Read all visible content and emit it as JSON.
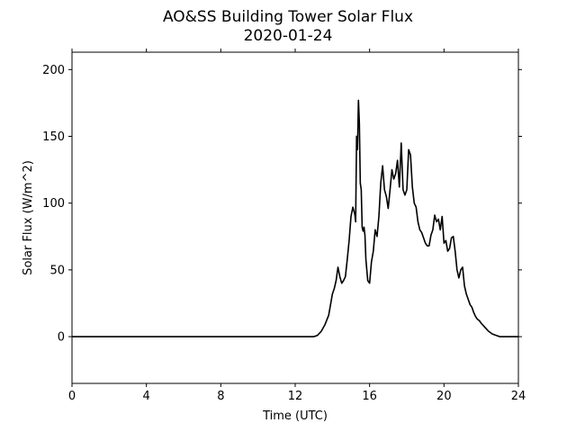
{
  "chart_data": {
    "type": "line",
    "title": "AO&SS Building Tower Solar Flux",
    "subtitle": "2020-01-24",
    "xlabel": "Time (UTC)",
    "ylabel": "Solar Flux (W/m^2)",
    "xlim": [
      0,
      24
    ],
    "ylim": [
      -35,
      213
    ],
    "xticks": [
      0,
      4,
      8,
      12,
      16,
      20,
      24
    ],
    "yticks": [
      0,
      50,
      100,
      150,
      200
    ],
    "grid": false,
    "legend": "none",
    "series": [
      {
        "color": "#000000",
        "x": [
          0,
          1,
          2,
          3,
          4,
          5,
          6,
          7,
          8,
          9,
          10,
          11,
          12,
          12.5,
          13,
          13.2,
          13.4,
          13.6,
          13.8,
          13.9,
          14,
          14.1,
          14.2,
          14.3,
          14.4,
          14.5,
          14.6,
          14.7,
          14.8,
          14.9,
          15,
          15.1,
          15.2,
          15.25,
          15.3,
          15.35,
          15.4,
          15.45,
          15.5,
          15.55,
          15.6,
          15.65,
          15.7,
          15.75,
          15.8,
          15.9,
          16,
          16.1,
          16.15,
          16.2,
          16.3,
          16.4,
          16.5,
          16.6,
          16.7,
          16.8,
          16.9,
          17,
          17.1,
          17.2,
          17.3,
          17.4,
          17.5,
          17.6,
          17.7,
          17.8,
          17.9,
          18,
          18.1,
          18.2,
          18.3,
          18.4,
          18.5,
          18.6,
          18.7,
          18.8,
          18.9,
          19,
          19.1,
          19.2,
          19.3,
          19.4,
          19.5,
          19.6,
          19.7,
          19.8,
          19.9,
          20,
          20.1,
          20.2,
          20.3,
          20.4,
          20.5,
          20.6,
          20.7,
          20.8,
          20.9,
          21,
          21.1,
          21.2,
          21.3,
          21.4,
          21.5,
          21.6,
          21.7,
          21.8,
          21.9,
          22,
          22.2,
          22.4,
          22.6,
          22.8,
          23,
          23.2,
          23.5,
          24
        ],
        "y": [
          0,
          0,
          0,
          0,
          0,
          0,
          0,
          0,
          0,
          0,
          0,
          0,
          0,
          0,
          0,
          1,
          4,
          9,
          16,
          24,
          32,
          36,
          42,
          52,
          45,
          40,
          42,
          45,
          58,
          72,
          90,
          97,
          92,
          86,
          150,
          140,
          177,
          160,
          115,
          110,
          82,
          79,
          82,
          76,
          58,
          42,
          40,
          56,
          60,
          64,
          80,
          75,
          90,
          115,
          128,
          110,
          105,
          96,
          110,
          125,
          118,
          122,
          132,
          112,
          145,
          110,
          106,
          110,
          140,
          136,
          112,
          100,
          97,
          86,
          80,
          78,
          74,
          70,
          68,
          68,
          76,
          80,
          91,
          86,
          88,
          80,
          90,
          70,
          72,
          64,
          66,
          74,
          75,
          64,
          50,
          44,
          50,
          52,
          38,
          32,
          28,
          24,
          22,
          18,
          15,
          13,
          12,
          10,
          7,
          4,
          2,
          1,
          0,
          0,
          0,
          0
        ]
      }
    ]
  }
}
